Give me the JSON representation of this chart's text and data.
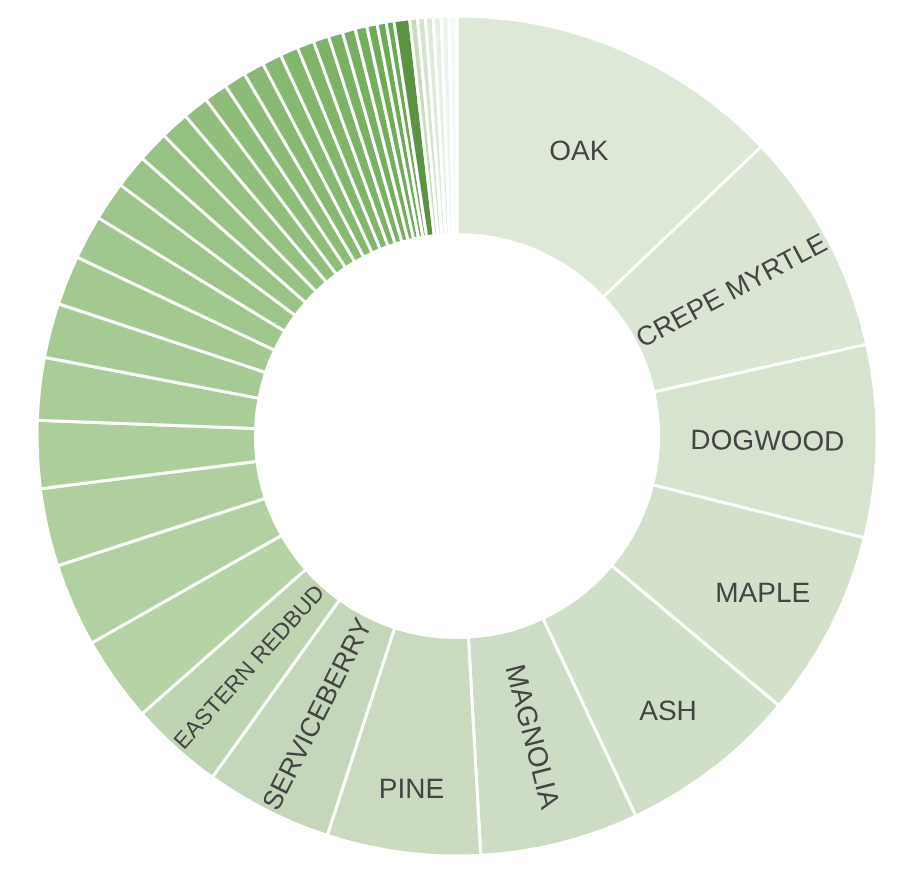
{
  "chart_data": {
    "type": "donut",
    "categories": [
      "OAK",
      "CREPE MYRTLE",
      "DOGWOOD",
      "MAPLE",
      "ASH",
      "MAGNOLIA",
      "PINE",
      "SERVICEBERRY",
      "EASTERN REDBUD",
      null,
      null,
      null,
      null,
      null,
      null,
      null,
      null,
      null,
      null,
      null,
      null,
      null,
      null,
      null,
      null,
      null,
      null,
      null,
      null,
      null,
      null,
      null,
      null,
      null,
      null,
      null,
      null,
      null,
      null,
      null,
      null,
      null
    ],
    "values": [
      12.9,
      8.6,
      7.4,
      7.2,
      6.9,
      6.1,
      5.9,
      4.9,
      3.6,
      3.3,
      3.2,
      3.0,
      2.6,
      2.4,
      2.1,
      1.9,
      1.7,
      1.5,
      1.3,
      1.2,
      1.1,
      1.0,
      0.9,
      0.85,
      0.8,
      0.75,
      0.7,
      0.65,
      0.6,
      0.55,
      0.5,
      0.45,
      0.4,
      0.35,
      0.3,
      0.6,
      0.3,
      0.3,
      0.3,
      0.3,
      0.3,
      0.3
    ],
    "colors": [
      "#dde8d6",
      "#dae6d3",
      "#d6e3cf",
      "#d3e1cb",
      "#d0dfc7",
      "#cddcc4",
      "#c9dabf",
      "#c4d7ba",
      "#bfd5b2",
      "#b5d3a5",
      "#b2d1a2",
      "#afcf9e",
      "#acce9b",
      "#a9cc98",
      "#a6ca94",
      "#a3c991",
      "#a0c78e",
      "#9dc58a",
      "#9ac487",
      "#97c284",
      "#94c080",
      "#91be7d",
      "#8ebd7a",
      "#8bbb76",
      "#88b973",
      "#85b870",
      "#82b66c",
      "#7fb469",
      "#7cb366",
      "#79b162",
      "#76af5f",
      "#73ae5c",
      "#70ac58",
      "#6daa55",
      "#6aa952",
      "#5a9440",
      "#c8dcbc",
      "#d4e4cc",
      "#dde9d6",
      "#e6efe1",
      "#eef4eb",
      "#f5f9f3"
    ],
    "legend": false
  }
}
